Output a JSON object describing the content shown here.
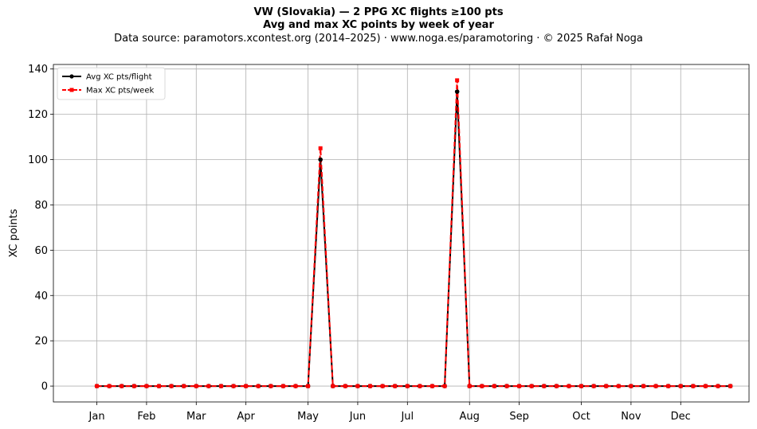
{
  "chart_data": {
    "type": "line",
    "title": "VW (Slovakia)  —  2 PPG XC flights ≥100 pts",
    "subtitle": "Avg and max XC points by week of year",
    "source": "Data source: paramotors.xcontest.org (2014–2025)  ·  www.noga.es/paramotoring  ·  © 2025 Rafał Noga",
    "xlabel": "",
    "ylabel": "XC points",
    "xlim": [
      -2.5,
      53.5
    ],
    "ylim": [
      -7,
      142
    ],
    "yticks": [
      0,
      20,
      40,
      60,
      80,
      100,
      120,
      140
    ],
    "xticks": [
      {
        "label": "Jan",
        "week": 1
      },
      {
        "label": "Feb",
        "week": 5
      },
      {
        "label": "Mar",
        "week": 9
      },
      {
        "label": "Apr",
        "week": 13
      },
      {
        "label": "May",
        "week": 18
      },
      {
        "label": "Jun",
        "week": 22
      },
      {
        "label": "Jul",
        "week": 26
      },
      {
        "label": "Aug",
        "week": 31
      },
      {
        "label": "Sep",
        "week": 35
      },
      {
        "label": "Oct",
        "week": 40
      },
      {
        "label": "Nov",
        "week": 44
      },
      {
        "label": "Dec",
        "week": 48
      }
    ],
    "grid": true,
    "legend_position": "top-left",
    "x": [
      1,
      2,
      3,
      4,
      5,
      6,
      7,
      8,
      9,
      10,
      11,
      12,
      13,
      14,
      15,
      16,
      17,
      18,
      19,
      20,
      21,
      22,
      23,
      24,
      25,
      26,
      27,
      28,
      29,
      30,
      31,
      32,
      33,
      34,
      35,
      36,
      37,
      38,
      39,
      40,
      41,
      42,
      43,
      44,
      45,
      46,
      47,
      48,
      49,
      50,
      51,
      52
    ],
    "series": [
      {
        "name": "Avg XC pts/flight",
        "color": "#000000",
        "style": "solid",
        "marker": "circle",
        "values": [
          0,
          0,
          0,
          0,
          0,
          0,
          0,
          0,
          0,
          0,
          0,
          0,
          0,
          0,
          0,
          0,
          0,
          0,
          100,
          0,
          0,
          0,
          0,
          0,
          0,
          0,
          0,
          0,
          0,
          130,
          0,
          0,
          0,
          0,
          0,
          0,
          0,
          0,
          0,
          0,
          0,
          0,
          0,
          0,
          0,
          0,
          0,
          0,
          0,
          0,
          0,
          0
        ]
      },
      {
        "name": "Max XC pts/week",
        "color": "#ff0000",
        "style": "dashed",
        "marker": "square",
        "values": [
          0,
          0,
          0,
          0,
          0,
          0,
          0,
          0,
          0,
          0,
          0,
          0,
          0,
          0,
          0,
          0,
          0,
          0,
          105,
          0,
          0,
          0,
          0,
          0,
          0,
          0,
          0,
          0,
          0,
          135,
          0,
          0,
          0,
          0,
          0,
          0,
          0,
          0,
          0,
          0,
          0,
          0,
          0,
          0,
          0,
          0,
          0,
          0,
          0,
          0,
          0,
          0
        ]
      }
    ]
  }
}
